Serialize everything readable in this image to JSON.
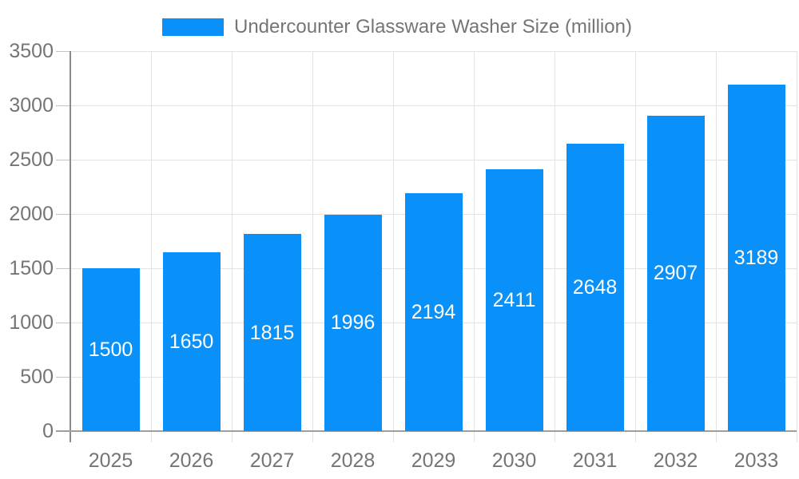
{
  "legend": {
    "label": "Undercounter Glassware Washer Size (million)",
    "swatch_color": "#0990f9"
  },
  "chart_data": {
    "type": "bar",
    "title": "Undercounter Glassware Washer Size (million)",
    "categories": [
      "2025",
      "2026",
      "2027",
      "2028",
      "2029",
      "2030",
      "2031",
      "2032",
      "2033"
    ],
    "values": [
      1500,
      1650,
      1815,
      1996,
      2194,
      2411,
      2648,
      2907,
      3189
    ],
    "series_name": "Undercounter Glassware Washer Size (million)",
    "xlabel": "",
    "ylabel": "",
    "ylim": [
      0,
      3500
    ],
    "ytick_step": 500,
    "yticks": [
      0,
      500,
      1000,
      1500,
      2000,
      2500,
      3000,
      3500
    ],
    "grid": true,
    "legend_position": "top",
    "bar_color": "#0990f9",
    "bar_label_color": "#ffffff",
    "axis_text_color": "#757575",
    "gridline_color": "#e3e3e3",
    "axis_line_color": "#8a8a8a",
    "baseline_color": "#9e9e9e",
    "tick_color": "#c4c4c4",
    "background_color": "#ffffff"
  }
}
